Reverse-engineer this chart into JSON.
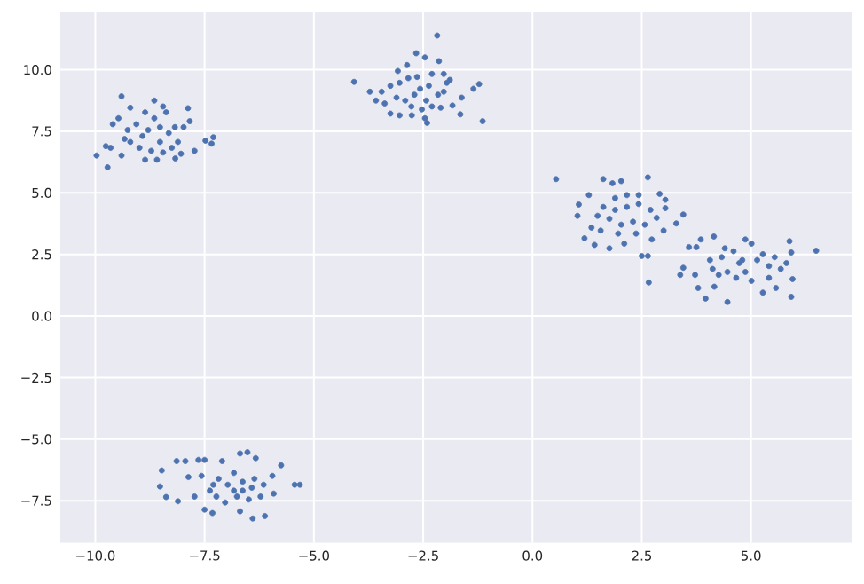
{
  "chart_data": {
    "type": "scatter",
    "color": "#4c72b0",
    "grid": true,
    "xlim": [
      -10.8,
      7.3
    ],
    "ylim": [
      -9.2,
      12.35
    ],
    "xticks": [
      {
        "value": -10,
        "label": "−10.0"
      },
      {
        "value": -7.5,
        "label": "−7.5"
      },
      {
        "value": -5,
        "label": "−5.0"
      },
      {
        "value": -2.5,
        "label": "−2.5"
      },
      {
        "value": 0,
        "label": "0.0"
      },
      {
        "value": 2.5,
        "label": "2.5"
      },
      {
        "value": 5,
        "label": "5.0"
      }
    ],
    "yticks": [
      {
        "value": -7.5,
        "label": "−7.5"
      },
      {
        "value": -5,
        "label": "−5.0"
      },
      {
        "value": -2.5,
        "label": "−2.5"
      },
      {
        "value": 0,
        "label": "0.0"
      },
      {
        "value": 2.5,
        "label": "2.5"
      },
      {
        "value": 5,
        "label": "5.0"
      },
      {
        "value": 7.5,
        "label": "7.5"
      },
      {
        "value": 10,
        "label": "10.0"
      }
    ],
    "x": [
      -9.97,
      -9.72,
      -9.4,
      -9.6,
      -9.76,
      -9.65,
      -9.4,
      -9.2,
      -8.65,
      -8.45,
      -7.88,
      -7.84,
      -7.73,
      -7.48,
      -7.3,
      -7.34,
      -8.17,
      -8.59,
      -8.86,
      -8.79,
      -8.92,
      -8.52,
      -8.32,
      -8.11,
      -7.98,
      -9.2,
      -9.06,
      -9.47,
      -8.65,
      -8.38,
      -8.72,
      -8.99,
      -8.25,
      -8.52,
      -9.26,
      -8.86,
      -8.04,
      -9.33,
      -8.45,
      -8.18,
      -2.18,
      -4.08,
      -3.72,
      -3.58,
      -2.66,
      -2.46,
      -2.87,
      -2.14,
      -2.03,
      -1.22,
      -1.35,
      -1.14,
      -1.65,
      -1.83,
      -2.1,
      -2.41,
      -2.46,
      -2.76,
      -3.04,
      -3.25,
      -3.45,
      -3.25,
      -3.04,
      -2.84,
      -2.64,
      -2.3,
      -1.96,
      -1.89,
      -1.62,
      -2.16,
      -2.43,
      -2.7,
      -2.91,
      -3.11,
      -2.57,
      -2.37,
      -2.77,
      -2.3,
      -3.08,
      -3.38,
      -2.53,
      -2.03,
      0.54,
      1.62,
      1.83,
      2.03,
      2.64,
      2.91,
      3.04,
      3.45,
      3.29,
      3.0,
      2.66,
      2.5,
      2.64,
      1.76,
      1.42,
      1.19,
      1.06,
      1.03,
      1.29,
      2.1,
      2.73,
      1.62,
      1.89,
      2.16,
      2.43,
      2.7,
      2.3,
      2.03,
      1.76,
      1.49,
      1.35,
      1.96,
      2.37,
      2.57,
      2.43,
      2.16,
      3.04,
      2.84,
      1.89,
      1.56,
      3.58,
      3.75,
      4.15,
      3.85,
      3.38,
      3.45,
      3.72,
      3.79,
      3.96,
      4.46,
      4.16,
      4.87,
      5.01,
      5.88,
      5.92,
      6.49,
      5.95,
      5.92,
      5.57,
      5.27,
      4.06,
      4.33,
      4.6,
      4.73,
      4.87,
      5.14,
      5.41,
      5.68,
      4.46,
      4.26,
      4.66,
      5.01,
      5.27,
      5.54,
      4.12,
      4.4,
      5.41,
      5.81,
      4.8,
      -8.52,
      -8.48,
      -8.38,
      -8.14,
      -8.11,
      -7.94,
      -7.87,
      -7.64,
      -7.5,
      -7.73,
      -7.5,
      -7.32,
      -7.1,
      -6.69,
      -6.52,
      -6.33,
      -5.95,
      -5.75,
      -5.44,
      -5.32,
      -5.92,
      -6.4,
      -6.12,
      -6.69,
      -7.38,
      -7.18,
      -6.97,
      -6.83,
      -6.63,
      -6.42,
      -6.22,
      -6.49,
      -6.76,
      -7.03,
      -7.23,
      -6.83,
      -6.63,
      -7.57,
      -7.3,
      -6.36,
      -6.15
    ],
    "values": [
      6.52,
      6.04,
      8.92,
      7.79,
      6.9,
      6.83,
      6.52,
      8.46,
      8.75,
      8.51,
      8.44,
      7.91,
      6.71,
      7.12,
      7.26,
      7.0,
      6.4,
      6.35,
      6.35,
      7.55,
      7.31,
      7.67,
      7.43,
      7.07,
      7.67,
      7.07,
      7.79,
      8.03,
      8.03,
      8.27,
      6.71,
      6.83,
      6.83,
      7.07,
      7.55,
      8.27,
      6.59,
      7.19,
      6.64,
      7.67,
      11.39,
      9.51,
      9.11,
      8.75,
      10.67,
      10.5,
      10.19,
      10.35,
      9.83,
      9.42,
      9.23,
      7.91,
      8.19,
      8.55,
      8.46,
      7.84,
      8.03,
      8.15,
      8.15,
      8.22,
      9.11,
      9.35,
      9.47,
      9.66,
      9.71,
      9.83,
      9.47,
      9.59,
      8.87,
      8.99,
      8.75,
      8.99,
      8.75,
      8.87,
      9.23,
      9.35,
      8.51,
      8.51,
      9.95,
      8.63,
      8.39,
      9.11,
      5.56,
      5.56,
      5.39,
      5.48,
      5.63,
      4.96,
      4.72,
      4.12,
      3.76,
      3.47,
      1.36,
      2.44,
      2.44,
      2.75,
      2.89,
      3.16,
      4.53,
      4.07,
      4.91,
      2.94,
      3.11,
      4.43,
      4.31,
      4.43,
      4.55,
      4.31,
      3.83,
      3.71,
      3.95,
      4.07,
      3.59,
      3.35,
      3.35,
      3.71,
      4.91,
      4.91,
      4.38,
      3.99,
      4.79,
      3.47,
      2.8,
      2.8,
      3.23,
      3.11,
      1.67,
      1.96,
      1.67,
      1.14,
      0.71,
      0.57,
      1.19,
      3.11,
      2.94,
      3.04,
      2.58,
      2.65,
      1.5,
      0.78,
      1.14,
      0.95,
      2.27,
      2.39,
      2.63,
      2.15,
      1.79,
      2.27,
      2.03,
      1.91,
      1.79,
      1.67,
      1.55,
      1.43,
      2.51,
      2.39,
      1.91,
      2.75,
      1.55,
      2.15,
      2.27,
      -6.92,
      -6.27,
      -7.35,
      -5.89,
      -7.52,
      -5.89,
      -6.54,
      -5.84,
      -5.84,
      -7.33,
      -7.86,
      -8.0,
      -5.89,
      -5.58,
      -5.53,
      -5.77,
      -6.49,
      -6.06,
      -6.85,
      -6.85,
      -7.21,
      -8.22,
      -8.12,
      -7.93,
      -7.09,
      -6.61,
      -6.85,
      -6.37,
      -6.73,
      -6.97,
      -7.33,
      -7.45,
      -7.33,
      -7.57,
      -7.33,
      -7.09,
      -7.09,
      -6.49,
      -6.85,
      -6.61,
      -6.85
    ]
  }
}
